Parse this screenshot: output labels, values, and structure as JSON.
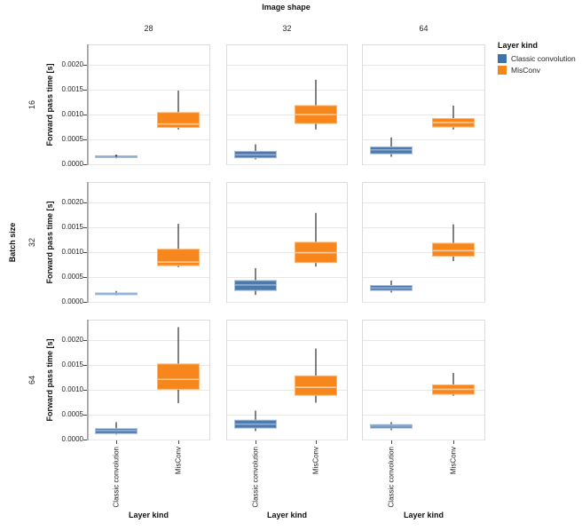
{
  "title": "Image shape",
  "legend": {
    "title": "Layer kind",
    "items": [
      {
        "label": "Classic convolution",
        "color": "#3c73ac"
      },
      {
        "label": "MisConv",
        "color": "#f6851a"
      }
    ]
  },
  "chart_data": {
    "type": "boxplot",
    "title": "Image shape",
    "facet_cols": {
      "title": "Image shape",
      "labels": [
        "28",
        "32",
        "64"
      ]
    },
    "facet_rows": {
      "title": "Batch size",
      "labels": [
        "16",
        "32",
        "64"
      ]
    },
    "x_categories": [
      "Classic convolution",
      "MisConv"
    ],
    "xlabel": "Layer kind",
    "ylabel": "Forward pass time [s]",
    "y_ticks": [
      0.0,
      0.0005,
      0.001,
      0.0015,
      0.002
    ],
    "y_tick_labels": [
      "0.0000",
      "0.0005",
      "0.0010",
      "0.0015",
      "0.0020"
    ],
    "ylim": [
      0,
      0.00241
    ],
    "grid": true,
    "legend_position": "right",
    "series_colors": {
      "classic": {
        "label": "Classic convolution",
        "fill": "#4d79ad",
        "edge": "#a9c0dc",
        "median": "#8fb0d4"
      },
      "misconv": {
        "label": "MisConv",
        "fill": "#f7871d",
        "edge": "#fbb977",
        "median": "#fccb9b"
      }
    },
    "style": {
      "whisker": "#3d3d3d",
      "flier": "#3d3d3d",
      "grid": "#e8e8e8",
      "panel_border": "#dcdcdc",
      "spine": "#6f6f6f",
      "tick": "#4a4a4a"
    },
    "facets": [
      {
        "batch": "16",
        "image": "28",
        "boxes": [
          {
            "series": "classic",
            "whislo": 0.00012,
            "q1": 0.00014,
            "med": 0.000155,
            "q3": 0.00017,
            "whishi": 0.00019,
            "fliers": [
              0.00017
            ]
          },
          {
            "series": "misconv",
            "whislo": 0.0007,
            "q1": 0.00074,
            "med": 0.00081,
            "q3": 0.00104,
            "whishi": 0.00148,
            "fliers": []
          }
        ]
      },
      {
        "batch": "16",
        "image": "32",
        "boxes": [
          {
            "series": "classic",
            "whislo": 0.0001,
            "q1": 0.00013,
            "med": 0.00019,
            "q3": 0.00026,
            "whishi": 0.0004,
            "fliers": []
          },
          {
            "series": "misconv",
            "whislo": 0.0007,
            "q1": 0.00082,
            "med": 0.001,
            "q3": 0.00118,
            "whishi": 0.0017,
            "fliers": []
          }
        ]
      },
      {
        "batch": "16",
        "image": "64",
        "boxes": [
          {
            "series": "classic",
            "whislo": 0.00015,
            "q1": 0.00021,
            "med": 0.00029,
            "q3": 0.00035,
            "whishi": 0.00054,
            "fliers": []
          },
          {
            "series": "misconv",
            "whislo": 0.0007,
            "q1": 0.00075,
            "med": 0.00084,
            "q3": 0.00092,
            "whishi": 0.00118,
            "fliers": []
          }
        ]
      },
      {
        "batch": "32",
        "image": "28",
        "boxes": [
          {
            "series": "classic",
            "whislo": 0.00013,
            "q1": 0.00015,
            "med": 0.000165,
            "q3": 0.00018,
            "whishi": 0.00022,
            "fliers": []
          },
          {
            "series": "misconv",
            "whislo": 0.0007,
            "q1": 0.00073,
            "med": 0.0008,
            "q3": 0.00106,
            "whishi": 0.00157,
            "fliers": []
          }
        ]
      },
      {
        "batch": "32",
        "image": "32",
        "boxes": [
          {
            "series": "classic",
            "whislo": 0.00014,
            "q1": 0.00023,
            "med": 0.00034,
            "q3": 0.00043,
            "whishi": 0.00068,
            "fliers": []
          },
          {
            "series": "misconv",
            "whislo": 0.00071,
            "q1": 0.00079,
            "med": 0.00099,
            "q3": 0.0012,
            "whishi": 0.00179,
            "fliers": []
          }
        ]
      },
      {
        "batch": "32",
        "image": "64",
        "boxes": [
          {
            "series": "classic",
            "whislo": 0.00019,
            "q1": 0.00023,
            "med": 0.00028,
            "q3": 0.00033,
            "whishi": 0.00043,
            "fliers": []
          },
          {
            "series": "misconv",
            "whislo": 0.00082,
            "q1": 0.00092,
            "med": 0.00103,
            "q3": 0.00118,
            "whishi": 0.00156,
            "fliers": []
          }
        ]
      },
      {
        "batch": "64",
        "image": "28",
        "boxes": [
          {
            "series": "classic",
            "whislo": 0.0001,
            "q1": 0.00012,
            "med": 0.00018,
            "q3": 0.00022,
            "whishi": 0.00035,
            "fliers": []
          },
          {
            "series": "misconv",
            "whislo": 0.00073,
            "q1": 0.00101,
            "med": 0.00121,
            "q3": 0.00152,
            "whishi": 0.00226,
            "fliers": []
          }
        ]
      },
      {
        "batch": "64",
        "image": "32",
        "boxes": [
          {
            "series": "classic",
            "whislo": 0.00017,
            "q1": 0.00023,
            "med": 0.00031,
            "q3": 0.00039,
            "whishi": 0.00058,
            "fliers": []
          },
          {
            "series": "misconv",
            "whislo": 0.00074,
            "q1": 0.00089,
            "med": 0.00105,
            "q3": 0.00128,
            "whishi": 0.00183,
            "fliers": []
          }
        ]
      },
      {
        "batch": "64",
        "image": "64",
        "boxes": [
          {
            "series": "classic",
            "whislo": 0.00019,
            "q1": 0.00023,
            "med": 0.00027,
            "q3": 0.0003,
            "whishi": 0.00035,
            "fliers": []
          },
          {
            "series": "misconv",
            "whislo": 0.00088,
            "q1": 0.00091,
            "med": 0.00101,
            "q3": 0.0011,
            "whishi": 0.00134,
            "fliers": []
          }
        ]
      }
    ]
  }
}
